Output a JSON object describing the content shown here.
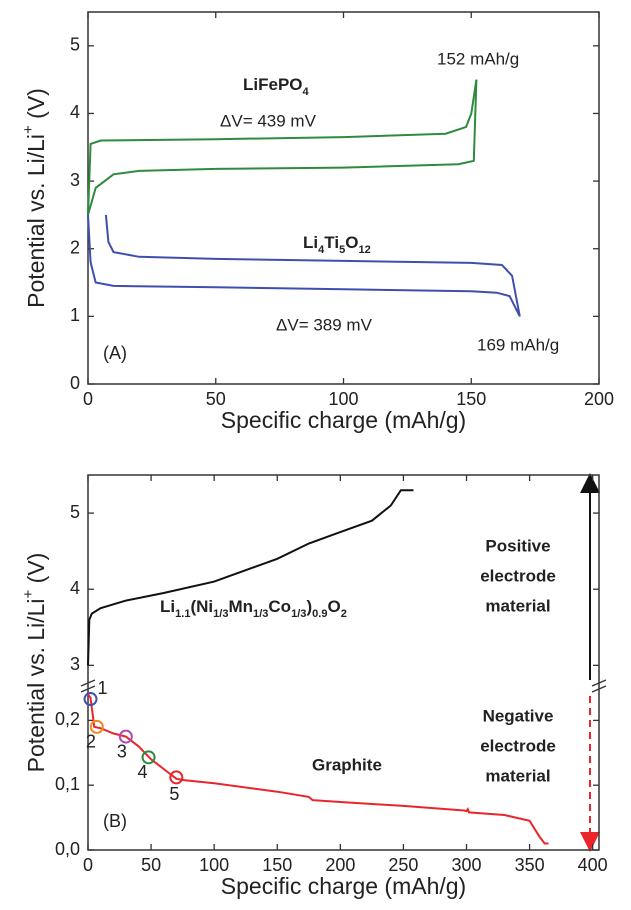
{
  "chart_data": [
    {
      "type": "line",
      "panel_label": "(A)",
      "x_label": "Specific charge (mAh/g)",
      "y_label": {
        "runs": [
          {
            "text": "Potential vs. Li/Li"
          },
          {
            "text": "+",
            "sup": true
          },
          {
            "text": " (V)"
          }
        ]
      },
      "xlim": [
        0,
        200
      ],
      "ylim": [
        0,
        5.5
      ],
      "xticks": [
        0,
        50,
        100,
        150,
        200
      ],
      "yticks": [
        0,
        1,
        2,
        3,
        4,
        5
      ],
      "series": [
        {
          "color": "#2e8b3e",
          "x": [
            0,
            1,
            5,
            50,
            100,
            140,
            148,
            150,
            152
          ],
          "values": [
            2.5,
            3.55,
            3.6,
            3.62,
            3.65,
            3.7,
            3.8,
            4.0,
            4.5
          ]
        },
        {
          "color": "#2e8b3e",
          "x": [
            152,
            151,
            145,
            100,
            50,
            20,
            10,
            3,
            0
          ],
          "values": [
            4.5,
            3.3,
            3.25,
            3.2,
            3.18,
            3.15,
            3.1,
            2.9,
            2.5
          ]
        },
        {
          "color": "#3e4fb0",
          "x": [
            7,
            8,
            10,
            20,
            50,
            100,
            150,
            162,
            166,
            169
          ],
          "values": [
            2.5,
            2.1,
            1.95,
            1.88,
            1.85,
            1.82,
            1.79,
            1.76,
            1.6,
            1.0
          ]
        },
        {
          "color": "#3e4fb0",
          "x": [
            169,
            165,
            160,
            150,
            100,
            50,
            10,
            3,
            1,
            0
          ],
          "values": [
            1.0,
            1.3,
            1.35,
            1.37,
            1.4,
            1.43,
            1.45,
            1.5,
            1.8,
            2.5
          ]
        }
      ],
      "annotations": [
        {
          "text": "152 mAh/g"
        },
        {
          "runs": [
            {
              "text": "LiFePO"
            },
            {
              "text": "4",
              "sub": true
            }
          ],
          "color": "#2e8b3e",
          "bold": true
        },
        {
          "text": "ΔV= 439 mV"
        },
        {
          "runs": [
            {
              "text": "Li"
            },
            {
              "text": "4",
              "sub": true
            },
            {
              "text": "Ti"
            },
            {
              "text": "5",
              "sub": true
            },
            {
              "text": "O"
            },
            {
              "text": "12",
              "sub": true
            }
          ],
          "color": "#3e4fb0",
          "bold": true
        },
        {
          "text": "ΔV= 389 mV"
        },
        {
          "text": "169 mAh/g"
        }
      ]
    },
    {
      "type": "line",
      "panel_label": "(B)",
      "x_label": "Specific charge (mAh/g)",
      "y_label": {
        "runs": [
          {
            "text": "Potential vs. Li/Li"
          },
          {
            "text": "+",
            "sup": true
          },
          {
            "text": " (V)"
          }
        ]
      },
      "xlim": [
        0,
        405
      ],
      "xticks": [
        0,
        50,
        100,
        150,
        200,
        250,
        300,
        350,
        400
      ],
      "ylim": [
        0,
        0.25
      ],
      "yticks": [
        {
          "value": 0,
          "label": "0,0"
        },
        {
          "value": 0.1,
          "label": "0,1"
        },
        {
          "value": 0.2,
          "label": "0,2"
        }
      ],
      "upper_ylim": [
        2.65,
        5.5
      ],
      "upper_yticks": [
        3,
        4,
        5
      ],
      "series": [
        {
          "color": "#111111",
          "axis": "upper",
          "x": [
            0,
            1,
            3,
            10,
            30,
            60,
            100,
            150,
            175,
            200,
            225,
            240,
            248,
            258
          ],
          "values": [
            3.0,
            3.6,
            3.68,
            3.75,
            3.85,
            3.95,
            4.1,
            4.4,
            4.6,
            4.75,
            4.9,
            5.1,
            5.3,
            5.3
          ]
        },
        {
          "color": "#e8262b",
          "x": [
            0,
            2,
            5,
            10,
            20,
            30,
            40,
            50,
            60,
            70,
            75,
            100,
            150,
            175,
            178,
            200,
            250,
            298,
            300,
            301,
            302,
            330,
            350,
            358,
            362,
            365
          ],
          "values": [
            0.24,
            0.235,
            0.19,
            0.188,
            0.18,
            0.175,
            0.16,
            0.14,
            0.125,
            0.11,
            0.108,
            0.103,
            0.09,
            0.082,
            0.077,
            0.074,
            0.068,
            0.061,
            0.06,
            0.063,
            0.058,
            0.054,
            0.045,
            0.02,
            0.01,
            0.01
          ]
        }
      ],
      "markers": [
        {
          "label": "1",
          "x": 2,
          "y": 0.233,
          "color": "#3e4fb0"
        },
        {
          "label": "2",
          "x": 7,
          "y": 0.19,
          "color": "#f08a24"
        },
        {
          "label": "3",
          "x": 30,
          "y": 0.175,
          "color": "#b04ab8"
        },
        {
          "label": "4",
          "x": 48,
          "y": 0.143,
          "color": "#2e8b3e"
        },
        {
          "label": "5",
          "x": 70,
          "y": 0.112,
          "color": "#e8262b"
        }
      ],
      "annotations": [
        {
          "runs": [
            {
              "text": "Li"
            },
            {
              "text": "1.1",
              "sub": true
            },
            {
              "text": "(Ni"
            },
            {
              "text": "1/3",
              "sub": true
            },
            {
              "text": "Mn"
            },
            {
              "text": "1/3",
              "sub": true
            },
            {
              "text": "Co"
            },
            {
              "text": "1/3",
              "sub": true
            },
            {
              "text": ")"
            },
            {
              "text": "0.9",
              "sub": true
            },
            {
              "text": "O"
            },
            {
              "text": "2",
              "sub": true
            }
          ],
          "bold": true
        },
        {
          "text": "Graphite",
          "color": "#e8262b",
          "bold": true
        },
        {
          "lines": [
            "Positive",
            "electrode",
            "material"
          ],
          "bold": true
        },
        {
          "lines": [
            "Negative",
            "electrode",
            "material"
          ],
          "bold": true
        }
      ]
    }
  ]
}
